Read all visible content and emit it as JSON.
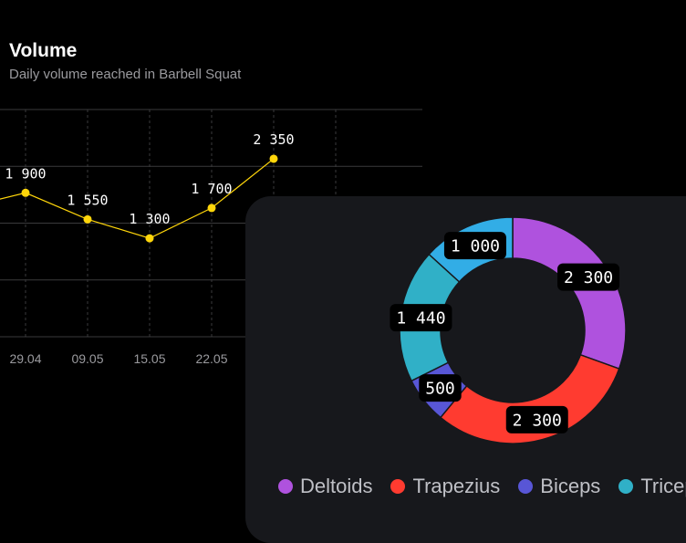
{
  "volume_card": {
    "title": "Volume",
    "subtitle": "Daily volume reached in Barbell Squat"
  },
  "muscles_card": {
    "legend": [
      {
        "label": "Deltoids",
        "color": "#af52de"
      },
      {
        "label": "Trapezius",
        "color": "#ff3b30"
      },
      {
        "label": "Biceps",
        "color": "#5856d6"
      },
      {
        "label": "Triceps",
        "color": "#30b0c7"
      }
    ]
  },
  "chart_data": [
    {
      "type": "line",
      "title": "Volume",
      "subtitle": "Daily volume reached in Barbell Squat",
      "color": "#ffd60a",
      "ylim": [
        0,
        3000
      ],
      "grid": true,
      "points": [
        {
          "x": "",
          "y": 1700,
          "label": "",
          "tick_visible": false
        },
        {
          "x": "29.04",
          "y": 1900,
          "label": "1 900",
          "tick_visible": true
        },
        {
          "x": "09.05",
          "y": 1550,
          "label": "1 550",
          "tick_visible": true
        },
        {
          "x": "15.05",
          "y": 1300,
          "label": "1 300",
          "tick_visible": true
        },
        {
          "x": "22.05",
          "y": 1700,
          "label": "1 700",
          "tick_visible": true
        },
        {
          "x": "",
          "y": 2350,
          "label": "2 350",
          "tick_visible": false
        }
      ]
    },
    {
      "type": "pie",
      "variant": "donut",
      "slices": [
        {
          "name": "Deltoids",
          "value": 2300,
          "label": "2 300",
          "color": "#af52de"
        },
        {
          "name": "Trapezius",
          "value": 2300,
          "label": "2 300",
          "color": "#ff3b30"
        },
        {
          "name": "Biceps",
          "value": 500,
          "label": "500",
          "color": "#5856d6"
        },
        {
          "name": "Triceps",
          "value": 1440,
          "label": "1 440",
          "color": "#30b0c7"
        },
        {
          "name": "",
          "value": 1000,
          "label": "1 000",
          "color": "#32ade6"
        }
      ]
    }
  ]
}
